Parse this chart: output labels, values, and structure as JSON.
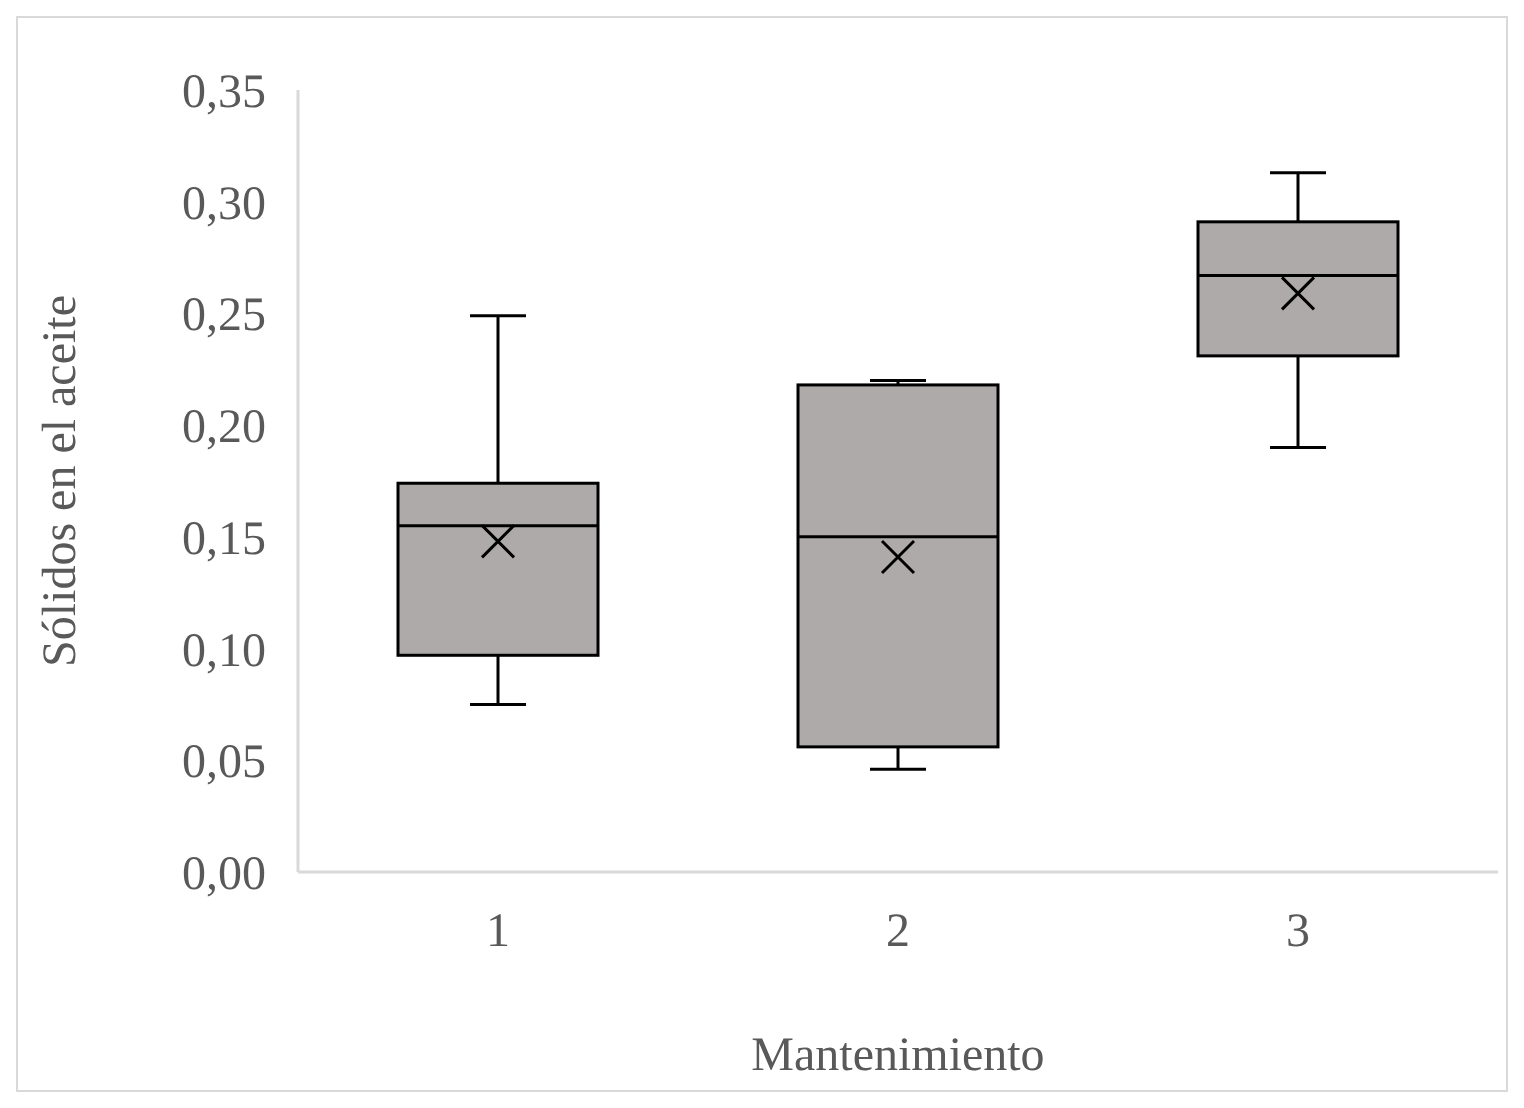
{
  "chart_data": {
    "type": "box",
    "xlabel": "Mantenimiento",
    "ylabel": "Sólidos en el aceite",
    "categories": [
      "1",
      "2",
      "3"
    ],
    "color": "#aeaaaa",
    "boxes": [
      {
        "low": 0.075,
        "q1": 0.097,
        "median": 0.155,
        "q3": 0.174,
        "high": 0.249,
        "mean": 0.148
      },
      {
        "low": 0.046,
        "q1": 0.056,
        "median": 0.15,
        "q3": 0.218,
        "high": 0.22,
        "mean": 0.141
      },
      {
        "low": 0.19,
        "q1": 0.231,
        "median": 0.267,
        "q3": 0.291,
        "high": 0.313,
        "mean": 0.259
      }
    ],
    "ylim": [
      0,
      0.35
    ],
    "yticks": [
      {
        "value": 0,
        "label": "0,00"
      },
      {
        "value": 0.05,
        "label": "0,05"
      },
      {
        "value": 0.1,
        "label": "0,10"
      },
      {
        "value": 0.15,
        "label": "0,15"
      },
      {
        "value": 0.2,
        "label": "0,20"
      },
      {
        "value": 0.25,
        "label": "0,25"
      },
      {
        "value": 0.3,
        "label": "0,30"
      },
      {
        "value": 0.35,
        "label": "0,35"
      }
    ],
    "grid": false,
    "legend": false
  }
}
